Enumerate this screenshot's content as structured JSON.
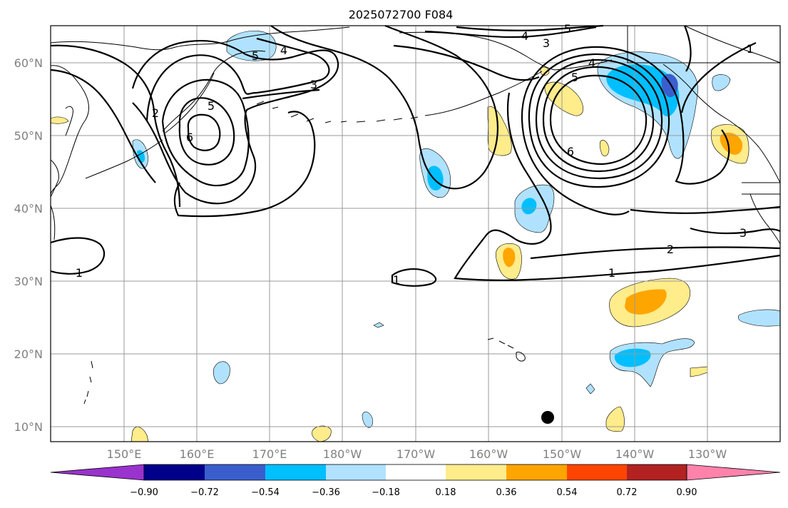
{
  "title": "2025072700 F084",
  "lat_labels": [
    "10°N",
    "20°N",
    "30°N",
    "40°N",
    "50°N",
    "60°N"
  ],
  "lon_labels": [
    "150°E",
    "160°E",
    "170°E",
    "180°W",
    "170°W",
    "160°W",
    "150°W",
    "140°W",
    "130°W"
  ],
  "colorbar": {
    "ticks": [
      "−0.90",
      "−0.72",
      "−0.54",
      "−0.36",
      "−0.18",
      "0.18",
      "0.36",
      "0.54",
      "0.72",
      "0.90"
    ],
    "colors": [
      "#9a32cd",
      "#00008b",
      "#3a5fcd",
      "#00bfff",
      "#b0e2ff",
      "#ffffff",
      "#ffec8b",
      "#ffa500",
      "#ff4500",
      "#b22222",
      "#ff82ab"
    ]
  },
  "contour_labels": [
    "1",
    "1",
    "1",
    "1",
    "2",
    "2",
    "3",
    "3",
    "3",
    "4",
    "4",
    "4",
    "5",
    "5",
    "5",
    "5",
    "6",
    "6"
  ],
  "colors": {
    "frame": "#000000",
    "grid": "#9a9a9a",
    "axis_label": "#808080"
  }
}
